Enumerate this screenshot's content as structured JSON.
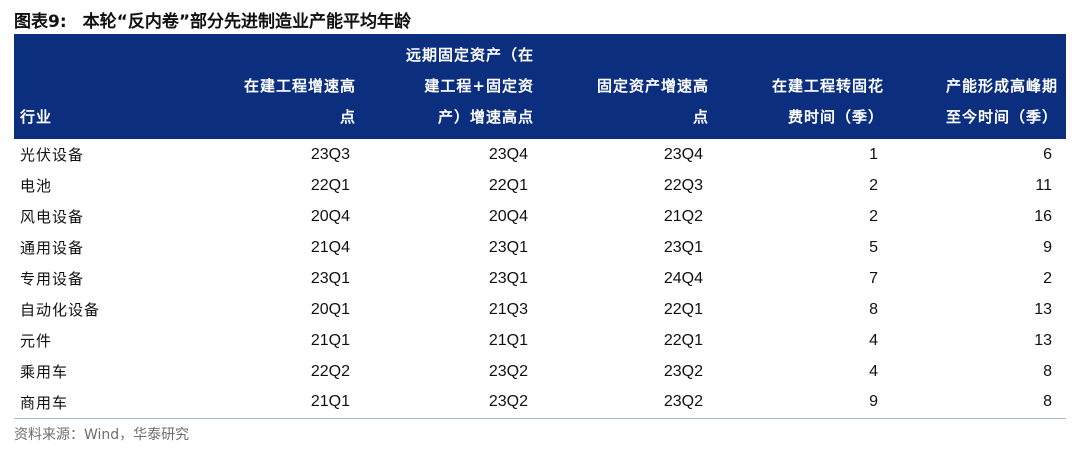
{
  "title": {
    "number": "图表9:",
    "text": "本轮“反内卷”部分先进制造业产能平均年龄"
  },
  "table": {
    "headers": [
      "行业",
      "在建工程增速高点",
      "远期固定资产（在建工程+固定资产）增速高点",
      "固定资产增速高点",
      "在建工程转固花费时间（季）",
      "产能形成高峰期至今时间（季）"
    ],
    "header_lines": [
      [
        "行业"
      ],
      [
        "在建工程增速高",
        "点"
      ],
      [
        "远期固定资产（在",
        "建工程+固定资",
        "产）增速高点"
      ],
      [
        "固定资产增速高",
        "点"
      ],
      [
        "在建工程转固花",
        "费时间（季）"
      ],
      [
        "产能形成高峰期",
        "至今时间（季）"
      ]
    ],
    "rows": [
      [
        "光伏设备",
        "23Q3",
        "23Q4",
        "23Q4",
        "1",
        "6"
      ],
      [
        "电池",
        "22Q1",
        "22Q1",
        "22Q3",
        "2",
        "11"
      ],
      [
        "风电设备",
        "20Q4",
        "20Q4",
        "21Q2",
        "2",
        "16"
      ],
      [
        "通用设备",
        "21Q4",
        "23Q1",
        "23Q1",
        "5",
        "9"
      ],
      [
        "专用设备",
        "23Q1",
        "23Q1",
        "24Q4",
        "7",
        "2"
      ],
      [
        "自动化设备",
        "20Q1",
        "21Q3",
        "22Q1",
        "8",
        "13"
      ],
      [
        "元件",
        "21Q1",
        "21Q1",
        "22Q1",
        "4",
        "13"
      ],
      [
        "乘用车",
        "22Q2",
        "23Q2",
        "23Q2",
        "4",
        "8"
      ],
      [
        "商用车",
        "21Q1",
        "23Q2",
        "23Q2",
        "9",
        "8"
      ]
    ]
  },
  "source": "资料来源：Wind，华泰研究",
  "colors": {
    "header_bg": "#0b2f7e",
    "header_text": "#ffffff",
    "bottom_rule": "#a9b8d9",
    "source_text": "#6e6e6e"
  }
}
